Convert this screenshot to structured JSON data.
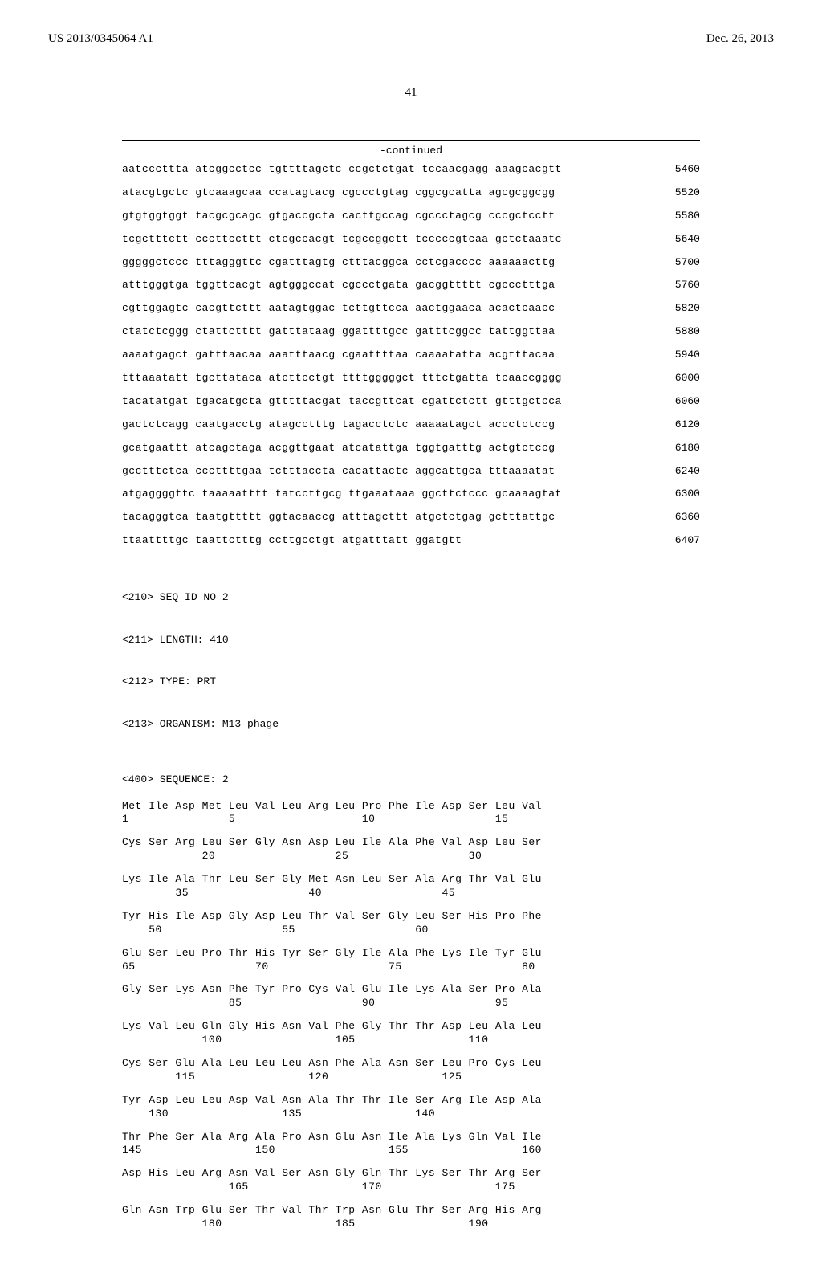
{
  "header": {
    "pub_number": "US 2013/0345064 A1",
    "pub_date": "Dec. 26, 2013"
  },
  "page_number": "41",
  "continued_label": "-continued",
  "dna_rows": [
    {
      "seq": "aatcccttta atcggcctcc tgttttagctc ccgctctgat tccaacgagg aaagcacgtt",
      "num": "5460"
    },
    {
      "seq": "atacgtgctc gtcaaagcaa ccatagtacg cgccctgtag cggcgcatta agcgcggcgg",
      "num": "5520"
    },
    {
      "seq": "gtgtggtggt tacgcgcagc gtgaccgcta cacttgccag cgccctagcg cccgctcctt",
      "num": "5580"
    },
    {
      "seq": "tcgctttctt cccttccttt ctcgccacgt tcgccggctt tcccccgtcaa gctctaaatc",
      "num": "5640"
    },
    {
      "seq": "gggggctccc tttagggttc cgatttagtg ctttacggca cctcgacccc aaaaaacttg",
      "num": "5700"
    },
    {
      "seq": "atttgggtga tggttcacgt agtgggccat cgccctgata gacggttttt cgccctttga",
      "num": "5760"
    },
    {
      "seq": "cgttggagtc cacgttcttt aatagtggac tcttgttcca aactggaaca acactcaacc",
      "num": "5820"
    },
    {
      "seq": "ctatctcggg ctattctttt gatttataag ggattttgcc gatttcggcc tattggttaa",
      "num": "5880"
    },
    {
      "seq": "aaaatgagct gatttaacaa aaatttaacg cgaattttaa caaaatatta acgtttacaa",
      "num": "5940"
    },
    {
      "seq": "tttaaatatt tgcttataca atcttcctgt ttttgggggct tttctgatta tcaaccgggg",
      "num": "6000"
    },
    {
      "seq": "tacatatgat tgacatgcta gtttttacgat taccgttcat cgattctctt gtttgctcca",
      "num": "6060"
    },
    {
      "seq": "gactctcagg caatgacctg atagcctttg tagacctctc aaaaatagct accctctccg",
      "num": "6120"
    },
    {
      "seq": "gcatgaattt atcagctaga acggttgaat atcatattga tggtgatttg actgtctccg",
      "num": "6180"
    },
    {
      "seq": "gcctttctca cccttttgaa tctttaccta cacattactc aggcattgca tttaaaatat",
      "num": "6240"
    },
    {
      "seq": "atgaggggttc taaaaatttt tatccttgcg ttgaaataaa ggcttctccc gcaaaagtat",
      "num": "6300"
    },
    {
      "seq": "tacagggtca taatgttttt ggtacaaccg atttagcttt atgctctgag gctttattgc",
      "num": "6360"
    },
    {
      "seq": "ttaattttgc taattctttg ccttgcctgt atgatttatt ggatgtt",
      "num": "6407"
    }
  ],
  "metadata": {
    "seq_id": "<210> SEQ ID NO 2",
    "length": "<211> LENGTH: 410",
    "type": "<212> TYPE: PRT",
    "organism": "<213> ORGANISM: M13 phage",
    "sequence_header": "<400> SEQUENCE: 2"
  },
  "protein_rows": [
    {
      "aa": "Met Ile Asp Met Leu Val Leu Arg Leu Pro Phe Ile Asp Ser Leu Val",
      "nums": "1               5                   10                  15"
    },
    {
      "aa": "Cys Ser Arg Leu Ser Gly Asn Asp Leu Ile Ala Phe Val Asp Leu Ser",
      "nums": "            20                  25                  30"
    },
    {
      "aa": "Lys Ile Ala Thr Leu Ser Gly Met Asn Leu Ser Ala Arg Thr Val Glu",
      "nums": "        35                  40                  45"
    },
    {
      "aa": "Tyr His Ile Asp Gly Asp Leu Thr Val Ser Gly Leu Ser His Pro Phe",
      "nums": "    50                  55                  60"
    },
    {
      "aa": "Glu Ser Leu Pro Thr His Tyr Ser Gly Ile Ala Phe Lys Ile Tyr Glu",
      "nums": "65                  70                  75                  80"
    },
    {
      "aa": "Gly Ser Lys Asn Phe Tyr Pro Cys Val Glu Ile Lys Ala Ser Pro Ala",
      "nums": "                85                  90                  95"
    },
    {
      "aa": "Lys Val Leu Gln Gly His Asn Val Phe Gly Thr Thr Asp Leu Ala Leu",
      "nums": "            100                 105                 110"
    },
    {
      "aa": "Cys Ser Glu Ala Leu Leu Leu Asn Phe Ala Asn Ser Leu Pro Cys Leu",
      "nums": "        115                 120                 125"
    },
    {
      "aa": "Tyr Asp Leu Leu Asp Val Asn Ala Thr Thr Ile Ser Arg Ile Asp Ala",
      "nums": "    130                 135                 140"
    },
    {
      "aa": "Thr Phe Ser Ala Arg Ala Pro Asn Glu Asn Ile Ala Lys Gln Val Ile",
      "nums": "145                 150                 155                 160"
    },
    {
      "aa": "Asp His Leu Arg Asn Val Ser Asn Gly Gln Thr Lys Ser Thr Arg Ser",
      "nums": "                165                 170                 175"
    },
    {
      "aa": "Gln Asn Trp Glu Ser Thr Val Thr Trp Asn Glu Thr Ser Arg His Arg",
      "nums": "            180                 185                 190"
    }
  ]
}
